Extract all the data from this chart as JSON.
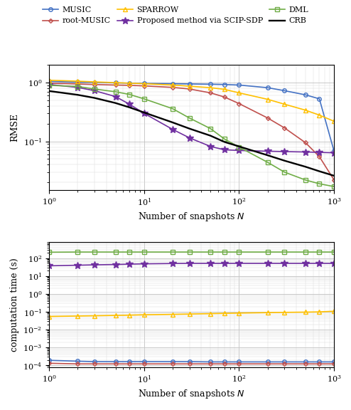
{
  "x_snapshots": [
    1,
    2,
    3,
    5,
    7,
    10,
    20,
    30,
    50,
    70,
    100,
    200,
    300,
    500,
    700,
    1000
  ],
  "rmse_MUSIC": [
    1.05,
    1.02,
    1.01,
    0.99,
    0.98,
    0.97,
    0.96,
    0.95,
    0.94,
    0.93,
    0.91,
    0.82,
    0.73,
    0.62,
    0.53,
    0.068
  ],
  "rmse_rootMUSIC": [
    0.98,
    0.95,
    0.93,
    0.91,
    0.9,
    0.88,
    0.83,
    0.78,
    0.67,
    0.57,
    0.44,
    0.25,
    0.17,
    0.095,
    0.055,
    0.022
  ],
  "rmse_SPARROW": [
    1.1,
    1.06,
    1.03,
    1.0,
    0.98,
    0.96,
    0.91,
    0.87,
    0.82,
    0.77,
    0.67,
    0.52,
    0.43,
    0.34,
    0.28,
    0.22
  ],
  "rmse_proposed": [
    0.93,
    0.83,
    0.73,
    0.58,
    0.43,
    0.3,
    0.16,
    0.115,
    0.082,
    0.072,
    0.07,
    0.068,
    0.067,
    0.066,
    0.065,
    0.064
  ],
  "rmse_DML": [
    0.9,
    0.86,
    0.78,
    0.7,
    0.63,
    0.53,
    0.36,
    0.25,
    0.165,
    0.11,
    0.08,
    0.044,
    0.03,
    0.022,
    0.019,
    0.017
  ],
  "rmse_CRB": [
    0.72,
    0.62,
    0.55,
    0.45,
    0.38,
    0.31,
    0.21,
    0.165,
    0.125,
    0.098,
    0.082,
    0.058,
    0.047,
    0.037,
    0.031,
    0.026
  ],
  "ct_MUSIC": [
    0.00019,
    0.00017,
    0.00016,
    0.00016,
    0.00016,
    0.00016,
    0.00016,
    0.00016,
    0.000155,
    0.000155,
    0.000155,
    0.000155,
    0.000155,
    0.000155,
    0.000155,
    0.000155
  ],
  "ct_rootMUSIC": [
    0.00013,
    0.00012,
    0.00012,
    0.00012,
    0.00012,
    0.00012,
    0.00012,
    0.00012,
    0.00012,
    0.00012,
    0.00012,
    0.00012,
    0.00012,
    0.00012,
    0.00012,
    0.00012
  ],
  "ct_SPARROW": [
    0.055,
    0.058,
    0.06,
    0.063,
    0.065,
    0.068,
    0.072,
    0.075,
    0.079,
    0.082,
    0.085,
    0.09,
    0.093,
    0.096,
    0.099,
    0.108
  ],
  "ct_proposed": [
    38,
    41,
    43,
    45,
    47,
    49,
    51,
    52,
    52,
    52,
    52,
    52,
    52,
    52,
    52,
    52
  ],
  "ct_DML": [
    220,
    225,
    225,
    225,
    225,
    225,
    225,
    225,
    225,
    225,
    225,
    225,
    225,
    225,
    225,
    225
  ],
  "color_MUSIC": "#4472C4",
  "color_rootMUSIC": "#C0504D",
  "color_SPARROW": "#FFC000",
  "color_proposed": "#7030A0",
  "color_DML": "#70AD47",
  "color_CRB": "#000000",
  "marker_MUSIC": "o",
  "marker_rootMUSIC": "D",
  "marker_SPARROW": "^",
  "marker_proposed": "*",
  "marker_DML": "s",
  "label_MUSIC": "MUSIC",
  "label_rootMUSIC": "root-MUSIC",
  "label_SPARROW": "SPARROW",
  "label_proposed": "Proposed method via SCIP-SDP",
  "label_DML": "DML",
  "label_CRB": "CRB",
  "xlabel": "Number of snapshots $N$",
  "ylabel_top": "RMSE",
  "ylabel_bot": "computation time (s)",
  "rmse_ylim": [
    0.015,
    2.0
  ],
  "ct_ylim": [
    8e-05,
    800
  ],
  "fig_width": 4.94,
  "fig_height": 5.76
}
